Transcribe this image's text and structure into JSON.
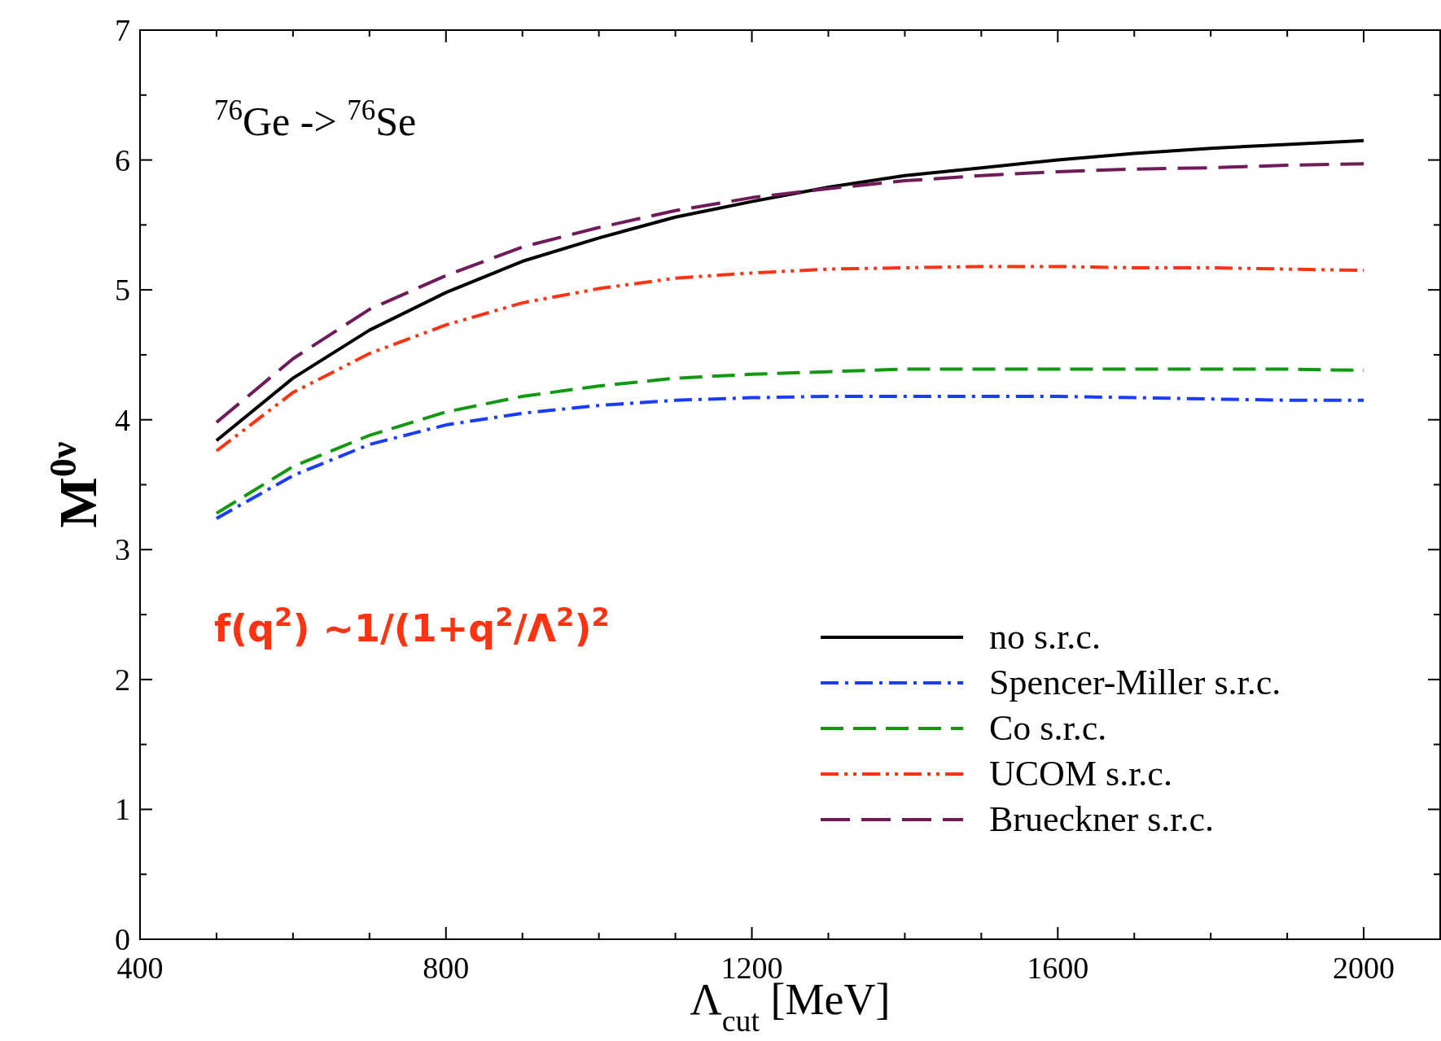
{
  "chart_data": {
    "type": "line",
    "xlabel": "Λ$_{cut}$ [MeV]",
    "ylabel": "M$^{0ν}$",
    "annotations": [
      "$^{76}$Ge -> $^{76}$Se",
      "f(q$^{2}$) ~1/(1+q$^{2}$/Λ$^{2}$)$^{2}$"
    ],
    "x": [
      500,
      600,
      700,
      800,
      900,
      1000,
      1100,
      1200,
      1300,
      1400,
      1500,
      1600,
      1700,
      1800,
      1900,
      2000
    ],
    "xlim": [
      400,
      2100
    ],
    "xticks": [
      400,
      {
        "value": 500,
        "label": null
      },
      {
        "value": 600,
        "label": null
      },
      {
        "value": 700,
        "label": null
      },
      800,
      {
        "value": 900,
        "label": null
      },
      {
        "value": 1000,
        "label": null
      },
      {
        "value": 1100,
        "label": null
      },
      1200,
      {
        "value": 1300,
        "label": null
      },
      {
        "value": 1400,
        "label": null
      },
      {
        "value": 1500,
        "label": null
      },
      1600,
      {
        "value": 1700,
        "label": null
      },
      {
        "value": 1800,
        "label": null
      },
      {
        "value": 1900,
        "label": null
      },
      2000,
      {
        "value": 2100,
        "label": null
      }
    ],
    "ylim": [
      0,
      7
    ],
    "yticks": [
      0,
      {
        "value": 0.5,
        "label": null
      },
      1,
      {
        "value": 1.5,
        "label": null
      },
      2,
      {
        "value": 2.5,
        "label": null
      },
      3,
      {
        "value": 3.5,
        "label": null
      },
      4,
      {
        "value": 4.5,
        "label": null
      },
      5,
      {
        "value": 5.5,
        "label": null
      },
      6,
      {
        "value": 6.5,
        "label": null
      },
      7
    ],
    "grid": false,
    "legend": "bottom right",
    "series": [
      {
        "name": "no s.r.c.",
        "color": "#000000",
        "line_style": "solid",
        "values": [
          3.84,
          4.32,
          4.69,
          4.98,
          5.22,
          5.4,
          5.56,
          5.68,
          5.79,
          5.88,
          5.94,
          6.0,
          6.05,
          6.09,
          6.12,
          6.15
        ]
      },
      {
        "name": "Spencer-Miller s.r.c.",
        "color": "#1a3cff",
        "line_style": "dashdot",
        "values": [
          3.24,
          3.57,
          3.81,
          3.96,
          4.05,
          4.11,
          4.15,
          4.17,
          4.18,
          4.18,
          4.18,
          4.18,
          4.17,
          4.16,
          4.15,
          4.15
        ]
      },
      {
        "name": "Co s.r.c.",
        "color": "#119911",
        "line_style": "dashed",
        "values": [
          3.28,
          3.64,
          3.88,
          4.06,
          4.18,
          4.26,
          4.32,
          4.35,
          4.37,
          4.39,
          4.39,
          4.39,
          4.39,
          4.39,
          4.39,
          4.38
        ]
      },
      {
        "name": "UCOM s.r.c.",
        "color": "#ff3311",
        "line_style": "dashdotdot",
        "values": [
          3.76,
          4.21,
          4.51,
          4.73,
          4.9,
          5.01,
          5.09,
          5.13,
          5.16,
          5.17,
          5.18,
          5.18,
          5.17,
          5.17,
          5.16,
          5.15
        ]
      },
      {
        "name": "Brueckner s.r.c.",
        "color": "#701a5a",
        "line_style": "longdash",
        "values": [
          3.98,
          4.47,
          4.85,
          5.11,
          5.33,
          5.48,
          5.61,
          5.71,
          5.78,
          5.84,
          5.88,
          5.91,
          5.93,
          5.94,
          5.96,
          5.97
        ]
      }
    ]
  }
}
